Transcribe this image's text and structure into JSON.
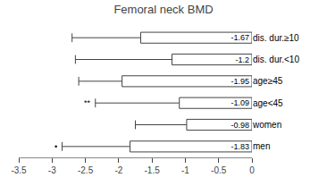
{
  "chart_data": {
    "type": "bar",
    "orientation": "horizontal",
    "title": "Femoral neck BMD",
    "categories": [
      "dis. dur.≥10",
      "dis. dur.<10",
      "age≥45",
      "age<45",
      "women",
      "men"
    ],
    "values": [
      -1.67,
      -1.2,
      -1.95,
      -1.09,
      -0.98,
      -1.83
    ],
    "data_labels": true,
    "error_bar_left": [
      -2.7,
      -2.65,
      -2.6,
      -2.35,
      -1.75,
      -2.85
    ],
    "annotations": [
      null,
      null,
      null,
      "**",
      null,
      "•"
    ],
    "color": "white",
    "xlim": [
      -3.5,
      0.0
    ],
    "xticks": [
      -3.5,
      -3.0,
      -2.5,
      -2.0,
      -1.5,
      -1.0,
      -0.5,
      0
    ],
    "grid": false
  }
}
